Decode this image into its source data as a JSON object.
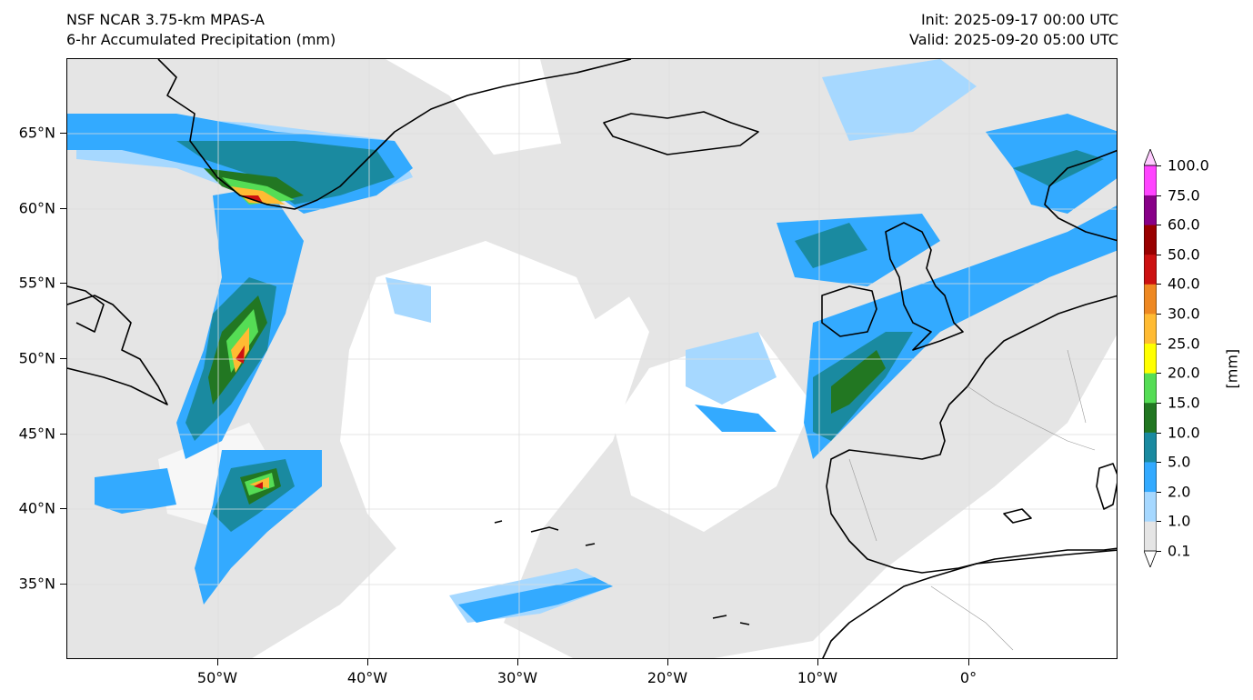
{
  "header": {
    "model": "NSF NCAR 3.75-km MPAS-A",
    "field": "6-hr Accumulated Precipitation (mm)",
    "init": "Init: 2025-09-17 00:00 UTC",
    "valid": "Valid: 2025-09-20 05:00 UTC"
  },
  "axes": {
    "lat_labels": [
      "65°N",
      "60°N",
      "55°N",
      "50°N",
      "45°N",
      "40°N",
      "35°N"
    ],
    "lon_labels": [
      "50°W",
      "40°W",
      "30°W",
      "20°W",
      "10°W",
      "0°"
    ]
  },
  "colorbar": {
    "unit": "[mm]",
    "levels": [
      "0.1",
      "1.0",
      "2.0",
      "5.0",
      "10.0",
      "15.0",
      "20.0",
      "25.0",
      "30.0",
      "40.0",
      "50.0",
      "60.0",
      "75.0",
      "100.0"
    ],
    "colors": [
      "#e5e5e5",
      "#a6d8ff",
      "#33aaff",
      "#1a8aa0",
      "#227722",
      "#55dd55",
      "#ffff00",
      "#ffbb33",
      "#ee8822",
      "#cc1111",
      "#990000",
      "#880088",
      "#ff44ff"
    ],
    "under_color": "#ffffff",
    "over_color": "#ffccff"
  },
  "map": {
    "background": "#ffffff",
    "land_outline": "#000000",
    "gridline_color": "#dddddd"
  }
}
